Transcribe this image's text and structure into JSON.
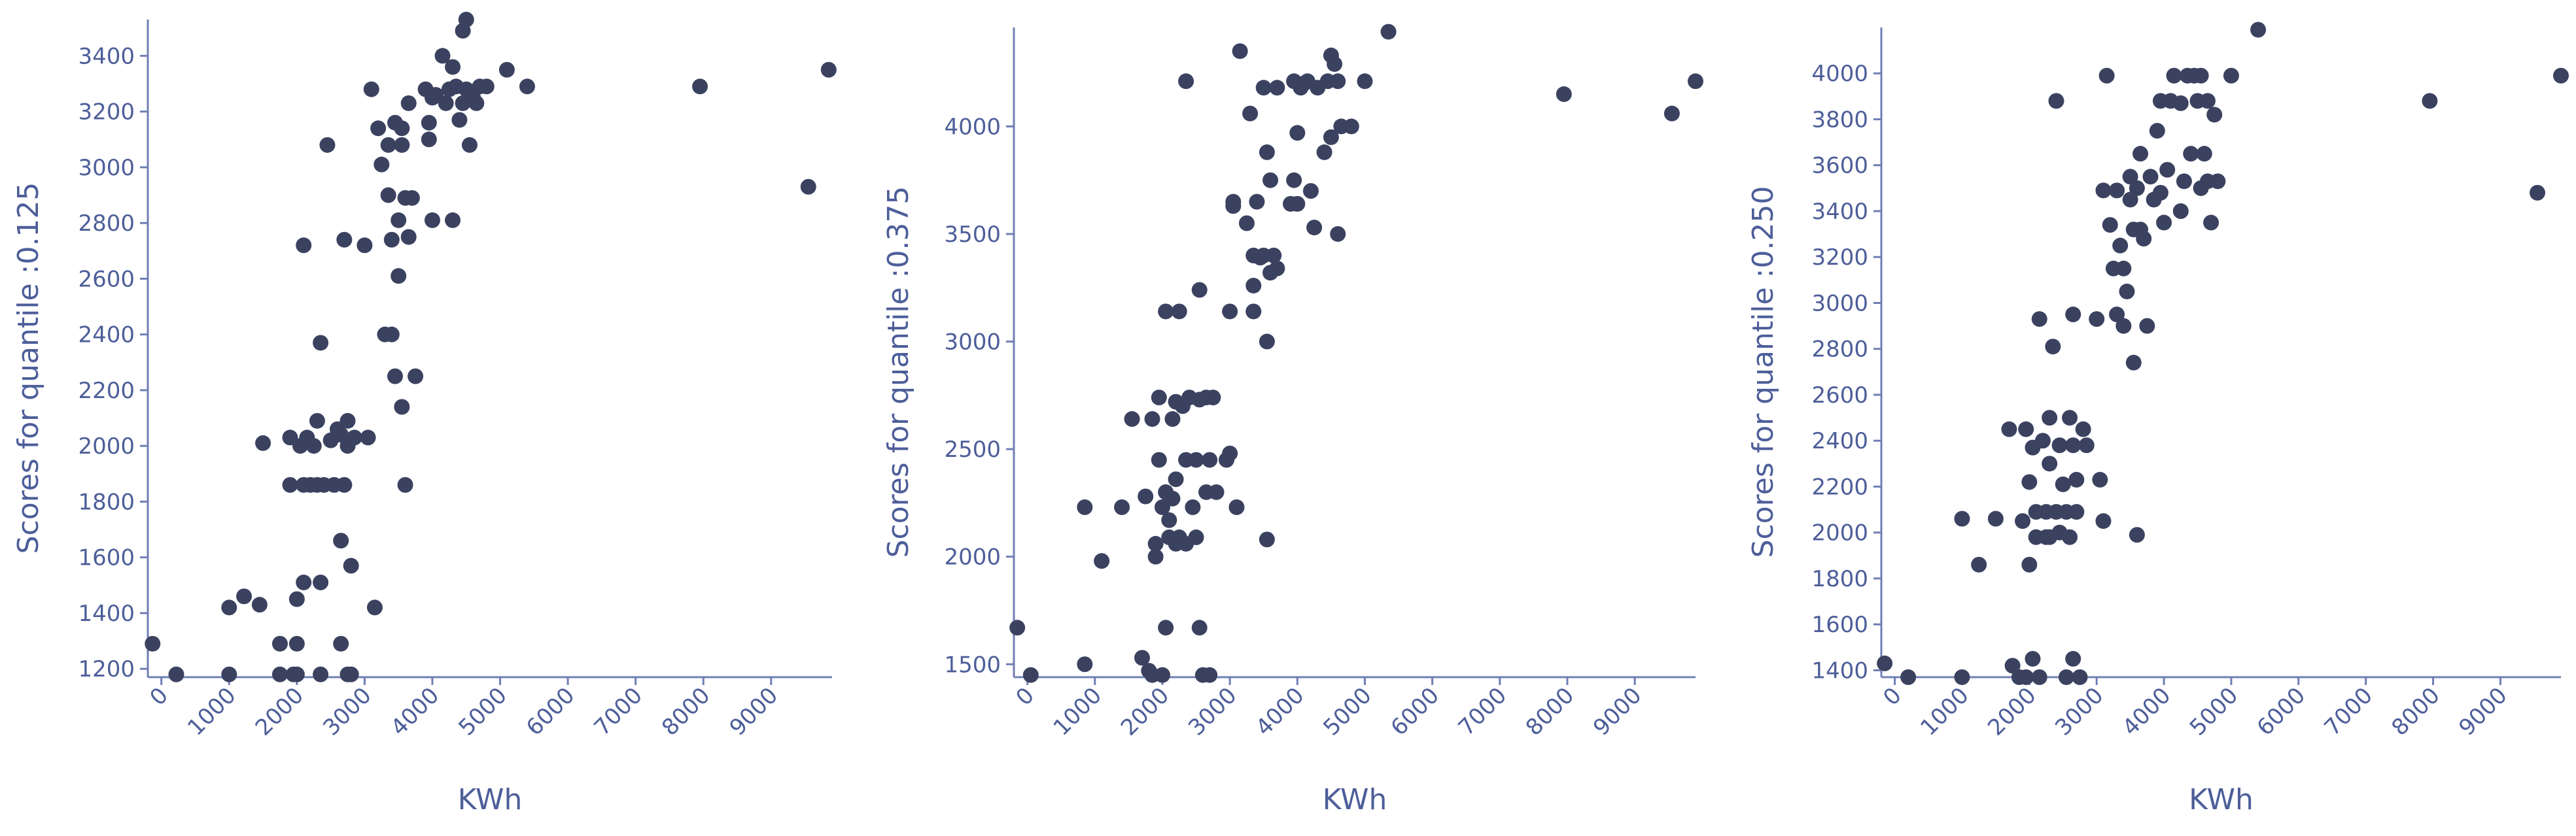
{
  "chart_data": [
    {
      "type": "scatter",
      "xlabel": "KWh",
      "ylabel": "Scores for quantile :0.125",
      "xlim": [
        -200,
        9900
      ],
      "ylim": [
        1170,
        3530
      ],
      "x_ticks": [
        0,
        1000,
        2000,
        3000,
        4000,
        5000,
        6000,
        7000,
        8000,
        9000
      ],
      "y_ticks": [
        1200,
        1400,
        1600,
        1800,
        2000,
        2200,
        2400,
        2600,
        2800,
        3000,
        3200,
        3400
      ],
      "points": [
        [
          -130,
          1290
        ],
        [
          220,
          1180
        ],
        [
          1000,
          1180
        ],
        [
          1000,
          1420
        ],
        [
          1220,
          1460
        ],
        [
          1450,
          1430
        ],
        [
          1500,
          2010
        ],
        [
          1750,
          1290
        ],
        [
          1750,
          1180
        ],
        [
          1900,
          1860
        ],
        [
          1950,
          1180
        ],
        [
          2000,
          1290
        ],
        [
          2000,
          1180
        ],
        [
          1900,
          2030
        ],
        [
          2000,
          1450
        ],
        [
          2050,
          2000
        ],
        [
          2100,
          1510
        ],
        [
          2100,
          2720
        ],
        [
          2100,
          1860
        ],
        [
          2150,
          2030
        ],
        [
          2200,
          1860
        ],
        [
          2250,
          2000
        ],
        [
          2300,
          2090
        ],
        [
          2300,
          1860
        ],
        [
          2350,
          1510
        ],
        [
          2350,
          2370
        ],
        [
          2350,
          1180
        ],
        [
          2400,
          1860
        ],
        [
          2450,
          3080
        ],
        [
          2500,
          2020
        ],
        [
          2550,
          1860
        ],
        [
          2600,
          2060
        ],
        [
          2650,
          1660
        ],
        [
          2650,
          2040
        ],
        [
          2650,
          1290
        ],
        [
          2700,
          2740
        ],
        [
          2700,
          1860
        ],
        [
          2750,
          1180
        ],
        [
          2750,
          2000
        ],
        [
          2750,
          2090
        ],
        [
          2800,
          1570
        ],
        [
          2800,
          1180
        ],
        [
          2850,
          2030
        ],
        [
          3000,
          2720
        ],
        [
          3050,
          2030
        ],
        [
          3100,
          3280
        ],
        [
          3150,
          1420
        ],
        [
          3200,
          3140
        ],
        [
          3250,
          3010
        ],
        [
          3300,
          2400
        ],
        [
          3350,
          3080
        ],
        [
          3350,
          2900
        ],
        [
          3400,
          2400
        ],
        [
          3400,
          2740
        ],
        [
          3450,
          2250
        ],
        [
          3450,
          3160
        ],
        [
          3500,
          2810
        ],
        [
          3500,
          2610
        ],
        [
          3550,
          3080
        ],
        [
          3550,
          2140
        ],
        [
          3550,
          3140
        ],
        [
          3600,
          2890
        ],
        [
          3600,
          1860
        ],
        [
          3650,
          2750
        ],
        [
          3650,
          3230
        ],
        [
          3700,
          2890
        ],
        [
          3750,
          2250
        ],
        [
          3900,
          3280
        ],
        [
          3950,
          3100
        ],
        [
          3950,
          3160
        ],
        [
          4000,
          3250
        ],
        [
          4000,
          2810
        ],
        [
          4050,
          3260
        ],
        [
          4150,
          3400
        ],
        [
          4200,
          3230
        ],
        [
          4250,
          3280
        ],
        [
          4300,
          2810
        ],
        [
          4300,
          3360
        ],
        [
          4350,
          3290
        ],
        [
          4400,
          3170
        ],
        [
          4450,
          3230
        ],
        [
          4450,
          3490
        ],
        [
          4500,
          3530
        ],
        [
          4500,
          3280
        ],
        [
          4550,
          3080
        ],
        [
          4600,
          3250
        ],
        [
          4650,
          3230
        ],
        [
          4700,
          3290
        ],
        [
          4800,
          3290
        ],
        [
          5100,
          3350
        ],
        [
          5400,
          3290
        ],
        [
          7950,
          3290
        ],
        [
          9550,
          2930
        ],
        [
          9850,
          3350
        ]
      ]
    },
    {
      "type": "scatter",
      "xlabel": "KWh",
      "ylabel": "Scores for quantile :0.375",
      "xlim": [
        -200,
        9900
      ],
      "ylim": [
        1440,
        4460
      ],
      "x_ticks": [
        0,
        1000,
        2000,
        3000,
        4000,
        5000,
        6000,
        7000,
        8000,
        9000
      ],
      "y_ticks": [
        1500,
        2000,
        2500,
        3000,
        3500,
        4000
      ],
      "points": [
        [
          -150,
          1670
        ],
        [
          50,
          1450
        ],
        [
          850,
          1500
        ],
        [
          850,
          2230
        ],
        [
          1100,
          1980
        ],
        [
          1400,
          2230
        ],
        [
          1550,
          2640
        ],
        [
          1700,
          1530
        ],
        [
          1750,
          2280
        ],
        [
          1800,
          1470
        ],
        [
          1850,
          2640
        ],
        [
          1850,
          1450
        ],
        [
          1900,
          2060
        ],
        [
          1900,
          2000
        ],
        [
          1950,
          2740
        ],
        [
          1950,
          2450
        ],
        [
          2000,
          1450
        ],
        [
          2000,
          2230
        ],
        [
          2050,
          1670
        ],
        [
          2050,
          3140
        ],
        [
          2050,
          2300
        ],
        [
          2100,
          2090
        ],
        [
          2100,
          2170
        ],
        [
          2150,
          2270
        ],
        [
          2150,
          2640
        ],
        [
          2200,
          2720
        ],
        [
          2200,
          2360
        ],
        [
          2200,
          2060
        ],
        [
          2250,
          2090
        ],
        [
          2250,
          3140
        ],
        [
          2300,
          2700
        ],
        [
          2350,
          4210
        ],
        [
          2350,
          2060
        ],
        [
          2350,
          2450
        ],
        [
          2400,
          2740
        ],
        [
          2450,
          2230
        ],
        [
          2500,
          2450
        ],
        [
          2500,
          2090
        ],
        [
          2550,
          1670
        ],
        [
          2550,
          2730
        ],
        [
          2550,
          3240
        ],
        [
          2600,
          1450
        ],
        [
          2650,
          2740
        ],
        [
          2650,
          2300
        ],
        [
          2700,
          1450
        ],
        [
          2700,
          2450
        ],
        [
          2750,
          2740
        ],
        [
          2800,
          2300
        ],
        [
          2950,
          2450
        ],
        [
          3000,
          2480
        ],
        [
          3000,
          3140
        ],
        [
          3050,
          3650
        ],
        [
          3050,
          3630
        ],
        [
          3100,
          2230
        ],
        [
          3150,
          4350
        ],
        [
          3250,
          3550
        ],
        [
          3300,
          4060
        ],
        [
          3350,
          3260
        ],
        [
          3350,
          3400
        ],
        [
          3350,
          3140
        ],
        [
          3400,
          3650
        ],
        [
          3450,
          3390
        ],
        [
          3500,
          4180
        ],
        [
          3500,
          3400
        ],
        [
          3550,
          2080
        ],
        [
          3550,
          3000
        ],
        [
          3550,
          3880
        ],
        [
          3600,
          3320
        ],
        [
          3600,
          3750
        ],
        [
          3650,
          3400
        ],
        [
          3700,
          3340
        ],
        [
          3700,
          4180
        ],
        [
          3900,
          3640
        ],
        [
          3950,
          3750
        ],
        [
          3950,
          4210
        ],
        [
          4000,
          3970
        ],
        [
          4000,
          3640
        ],
        [
          4050,
          4180
        ],
        [
          4100,
          4200
        ],
        [
          4150,
          4210
        ],
        [
          4200,
          3700
        ],
        [
          4250,
          3530
        ],
        [
          4300,
          4180
        ],
        [
          4400,
          3880
        ],
        [
          4450,
          4210
        ],
        [
          4500,
          4330
        ],
        [
          4500,
          3950
        ],
        [
          4550,
          4290
        ],
        [
          4600,
          4210
        ],
        [
          4600,
          3500
        ],
        [
          4650,
          4000
        ],
        [
          4800,
          4000
        ],
        [
          5000,
          4210
        ],
        [
          5350,
          4440
        ],
        [
          7950,
          4150
        ],
        [
          9550,
          4060
        ],
        [
          9900,
          4210
        ]
      ]
    },
    {
      "type": "scatter",
      "xlabel": "KWh",
      "ylabel": "Scores for quantile :0.250",
      "xlim": [
        -200,
        9900
      ],
      "ylim": [
        1370,
        4200
      ],
      "x_ticks": [
        0,
        1000,
        2000,
        3000,
        4000,
        5000,
        6000,
        7000,
        8000,
        9000
      ],
      "y_ticks": [
        1400,
        1600,
        1800,
        2000,
        2200,
        2400,
        2600,
        2800,
        3000,
        3200,
        3400,
        3600,
        3800,
        4000
      ],
      "points": [
        [
          -150,
          1430
        ],
        [
          200,
          1370
        ],
        [
          1000,
          1370
        ],
        [
          1000,
          2060
        ],
        [
          1250,
          1860
        ],
        [
          1500,
          2060
        ],
        [
          1700,
          2450
        ],
        [
          1750,
          1420
        ],
        [
          1850,
          1370
        ],
        [
          1900,
          2050
        ],
        [
          1950,
          2450
        ],
        [
          1950,
          1370
        ],
        [
          2000,
          1860
        ],
        [
          2000,
          2220
        ],
        [
          2050,
          2370
        ],
        [
          2050,
          1450
        ],
        [
          2100,
          2090
        ],
        [
          2100,
          1980
        ],
        [
          2150,
          2930
        ],
        [
          2150,
          1370
        ],
        [
          2200,
          2400
        ],
        [
          2250,
          2090
        ],
        [
          2250,
          1980
        ],
        [
          2300,
          2500
        ],
        [
          2300,
          2300
        ],
        [
          2300,
          1980
        ],
        [
          2350,
          2810
        ],
        [
          2400,
          3880
        ],
        [
          2400,
          2090
        ],
        [
          2450,
          2380
        ],
        [
          2450,
          2000
        ],
        [
          2500,
          2210
        ],
        [
          2550,
          1370
        ],
        [
          2550,
          2090
        ],
        [
          2600,
          2500
        ],
        [
          2600,
          1980
        ],
        [
          2650,
          2950
        ],
        [
          2650,
          2380
        ],
        [
          2650,
          1450
        ],
        [
          2700,
          2090
        ],
        [
          2700,
          2230
        ],
        [
          2750,
          1370
        ],
        [
          2800,
          2450
        ],
        [
          2850,
          2380
        ],
        [
          3000,
          2930
        ],
        [
          3050,
          2230
        ],
        [
          3100,
          3490
        ],
        [
          3100,
          2050
        ],
        [
          3150,
          3990
        ],
        [
          3200,
          3340
        ],
        [
          3250,
          3150
        ],
        [
          3300,
          3490
        ],
        [
          3300,
          2950
        ],
        [
          3350,
          3250
        ],
        [
          3400,
          3150
        ],
        [
          3400,
          2900
        ],
        [
          3450,
          3050
        ],
        [
          3500,
          3550
        ],
        [
          3500,
          3450
        ],
        [
          3550,
          3320
        ],
        [
          3550,
          2740
        ],
        [
          3600,
          3500
        ],
        [
          3600,
          1990
        ],
        [
          3650,
          3320
        ],
        [
          3650,
          3650
        ],
        [
          3700,
          3280
        ],
        [
          3750,
          2900
        ],
        [
          3800,
          3550
        ],
        [
          3850,
          3450
        ],
        [
          3900,
          3750
        ],
        [
          3950,
          3480
        ],
        [
          3950,
          3880
        ],
        [
          4000,
          3350
        ],
        [
          4050,
          3580
        ],
        [
          4100,
          3880
        ],
        [
          4150,
          3990
        ],
        [
          4250,
          3870
        ],
        [
          4250,
          3400
        ],
        [
          4300,
          3530
        ],
        [
          4350,
          3990
        ],
        [
          4400,
          3650
        ],
        [
          4450,
          3990
        ],
        [
          4500,
          3880
        ],
        [
          4550,
          3500
        ],
        [
          4550,
          3990
        ],
        [
          4600,
          3650
        ],
        [
          4650,
          3880
        ],
        [
          4650,
          3530
        ],
        [
          4700,
          3350
        ],
        [
          4750,
          3820
        ],
        [
          4800,
          3530
        ],
        [
          5000,
          3990
        ],
        [
          5400,
          4190
        ],
        [
          7950,
          3880
        ],
        [
          9550,
          3480
        ],
        [
          9900,
          3990
        ]
      ]
    }
  ]
}
